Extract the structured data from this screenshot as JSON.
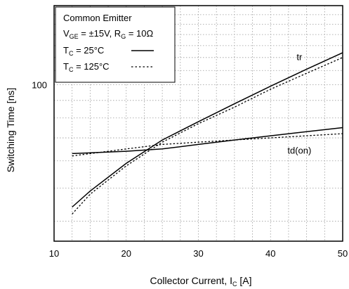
{
  "chart_data": {
    "type": "line",
    "xlabel": {
      "main": "Collector Current, I",
      "sub": "C",
      "unit": " [A]"
    },
    "ylabel": "Switching Time [ns]",
    "xlim": [
      10,
      50
    ],
    "ylim_log": [
      35,
      170
    ],
    "y_scale": "log",
    "x_ticks": [
      10,
      20,
      30,
      40,
      50
    ],
    "y_ticks": [
      100
    ],
    "grid": "dotted",
    "legend": {
      "title": "Common Emitter",
      "condition": {
        "v": "V",
        "v_sub": "GE",
        "v_val": " = ±15V, R",
        "r_sub": "G",
        "r_val": " = 10Ω"
      },
      "entries": [
        {
          "t": "T",
          "t_sub": "C",
          "val": " = 25°C",
          "style": "solid"
        },
        {
          "t": "T",
          "t_sub": "C",
          "val": " = 125°C",
          "style": "dotted"
        }
      ],
      "position": "top-left"
    },
    "series": [
      {
        "name": "tr",
        "style": "solid",
        "x": [
          12.5,
          15,
          20,
          25,
          30,
          35,
          40,
          45,
          50
        ],
        "y": [
          44,
          49,
          59,
          69,
          78,
          88,
          99,
          111,
          124
        ]
      },
      {
        "name": "tr",
        "style": "dotted",
        "x": [
          12.5,
          15,
          20,
          25,
          30,
          35,
          40,
          45,
          50
        ],
        "y": [
          42,
          48,
          58,
          68,
          77,
          86,
          97,
          108,
          120
        ]
      },
      {
        "name": "td(on)",
        "style": "solid",
        "x": [
          12.5,
          20,
          25,
          30,
          35,
          40,
          45,
          50
        ],
        "y": [
          63,
          64,
          65,
          67,
          69,
          71,
          73,
          75
        ]
      },
      {
        "name": "td(on)",
        "style": "dotted",
        "x": [
          12.5,
          20,
          25,
          30,
          35,
          40,
          45,
          50
        ],
        "y": [
          62,
          65,
          67,
          68,
          69,
          70,
          71,
          72
        ]
      }
    ],
    "curve_labels": [
      {
        "text": "tr",
        "x": 44,
        "y": 118
      },
      {
        "text": "td(on)",
        "x": 44,
        "y": 63
      }
    ]
  }
}
